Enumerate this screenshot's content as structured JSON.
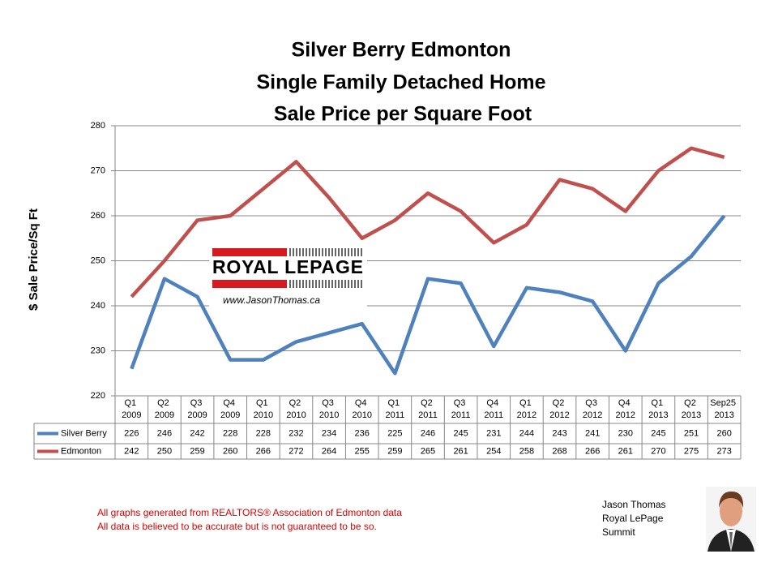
{
  "chart_data": {
    "type": "line",
    "title": [
      "Silver Berry Edmonton",
      "Single Family Detached Home",
      "Sale Price per Square Foot"
    ],
    "y_label": "$ Sale Price/Sq Ft",
    "categories": [
      "Q1 2009",
      "Q2 2009",
      "Q3 2009",
      "Q4 2009",
      "Q1 2010",
      "Q2 2010",
      "Q3 2010",
      "Q4 2010",
      "Q1 2011",
      "Q2 2011",
      "Q3 2011",
      "Q4 2011",
      "Q1 2012",
      "Q2 2012",
      "Q3 2012",
      "Q4 2012",
      "Q1 2013",
      "Q2 2013",
      "Sep25 2013"
    ],
    "series": [
      {
        "name": "Silver Berry",
        "color": "#4f81bd",
        "values": [
          226,
          246,
          242,
          228,
          228,
          232,
          234,
          236,
          225,
          246,
          245,
          231,
          244,
          243,
          241,
          230,
          245,
          251,
          260
        ]
      },
      {
        "name": "Edmonton",
        "color": "#c0504d",
        "values": [
          242,
          250,
          259,
          260,
          266,
          272,
          264,
          255,
          259,
          265,
          261,
          254,
          258,
          268,
          266,
          261,
          270,
          275,
          273
        ]
      }
    ],
    "ylim": [
      220,
      280
    ],
    "yticks": [
      220,
      230,
      240,
      250,
      260,
      270,
      280
    ],
    "grid": true,
    "logo": {
      "brand": "ROYAL LEPAGE",
      "url": "www.JasonThomas.ca"
    },
    "notes": [
      "All graphs generated from REALTORS® Association of Edmonton data",
      "All data is believed to be accurate but is not guaranteed to be so."
    ],
    "signature": [
      "Jason Thomas",
      "Royal LePage",
      "Summit"
    ]
  }
}
